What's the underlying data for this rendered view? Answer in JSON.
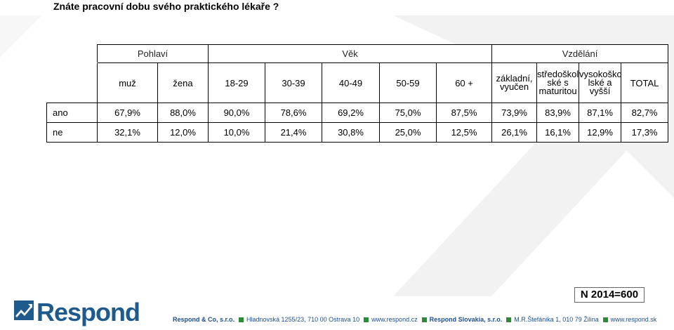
{
  "title": "Znáte pracovní dobu svého praktického lékaře ?",
  "groups": {
    "gender": "Pohlaví",
    "age": "Věk",
    "education": "Vzdělání"
  },
  "columns": [
    "muž",
    "žena",
    "18-29",
    "30-39",
    "40-49",
    "50-59",
    "60 +",
    "základní, vyučen",
    "středoškol ské s maturitou",
    "vysokoško lské a vyšší",
    "TOTAL"
  ],
  "rows": [
    {
      "label": "ano",
      "values": [
        "67,9%",
        "88,0%",
        "90,0%",
        "78,6%",
        "69,2%",
        "75,0%",
        "87,5%",
        "73,9%",
        "83,9%",
        "87,1%",
        "82,7%"
      ]
    },
    {
      "label": "ne",
      "values": [
        "32,1%",
        "12,0%",
        "10,0%",
        "21,4%",
        "30,8%",
        "25,0%",
        "12,5%",
        "26,1%",
        "16,1%",
        "12,9%",
        "17,3%"
      ]
    }
  ],
  "sample": "N 2014=600",
  "logo": {
    "text": "Respond"
  },
  "footer": {
    "company_cz": "Respond & Co, s.r.o.",
    "address_cz": "Hladnovská 1255/23, 710 00  Ostrava 10",
    "web_cz": "www.respond.cz",
    "company_sk": "Respond Slovakia, s.r.o.",
    "address_sk": "M.R.Štefánika 1, 010 79  Žilina",
    "web_sk": "www.respond.sk"
  },
  "colors": {
    "brand": "#1f5a8c",
    "accent_green": "#2a8a3a"
  }
}
